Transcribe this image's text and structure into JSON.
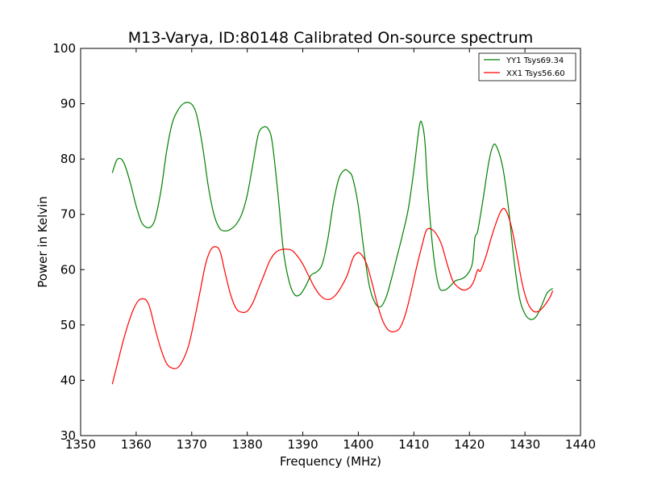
{
  "chart_data": {
    "type": "line",
    "title": "M13-Varya, ID:80148 Calibrated On-source spectrum",
    "xlabel": "Frequency (MHz)",
    "ylabel": "Power in Kelvin",
    "xlim": [
      1350,
      1440
    ],
    "ylim": [
      30,
      100
    ],
    "xticks": [
      1350,
      1360,
      1370,
      1380,
      1390,
      1400,
      1410,
      1420,
      1430,
      1440
    ],
    "yticks": [
      30,
      40,
      50,
      60,
      70,
      80,
      90,
      100
    ],
    "grid": false,
    "legend_position": "top-right",
    "series": [
      {
        "name": "YY1 Tsys69.34",
        "color": "#008000",
        "x": [
          1355.7,
          1356.5,
          1357.3,
          1358.0,
          1359.0,
          1360.0,
          1361.0,
          1362.0,
          1362.8,
          1363.5,
          1364.5,
          1365.5,
          1366.5,
          1367.5,
          1368.5,
          1369.5,
          1370.3,
          1371.0,
          1372.0,
          1373.0,
          1374.0,
          1375.0,
          1376.0,
          1377.0,
          1378.0,
          1379.0,
          1380.0,
          1381.0,
          1382.0,
          1383.0,
          1383.8,
          1384.5,
          1385.5,
          1386.5,
          1387.5,
          1388.5,
          1389.5,
          1390.5,
          1391.5,
          1392.5,
          1393.5,
          1394.5,
          1395.5,
          1396.5,
          1397.5,
          1398.3,
          1399.0,
          1400.0,
          1401.0,
          1402.0,
          1403.0,
          1404.0,
          1405.0,
          1406.0,
          1407.0,
          1408.0,
          1409.0,
          1410.0,
          1411.0,
          1411.5,
          1412.0,
          1412.5,
          1413.5,
          1414.5,
          1415.5,
          1416.5,
          1417.5,
          1418.5,
          1419.5,
          1420.5,
          1421.0,
          1421.5,
          1422.5,
          1423.5,
          1424.3,
          1425.0,
          1426.0,
          1427.0,
          1428.0,
          1429.0,
          1430.0,
          1431.0,
          1432.0,
          1433.0,
          1434.0,
          1435.0
        ],
        "y": [
          77.5,
          79.8,
          80.0,
          78.8,
          75.5,
          71.5,
          68.5,
          67.6,
          67.9,
          69.5,
          74.5,
          81.5,
          86.5,
          88.8,
          90.0,
          90.2,
          89.5,
          87.5,
          82.0,
          75.0,
          70.0,
          67.5,
          67.0,
          67.3,
          68.2,
          70.0,
          73.5,
          79.0,
          84.5,
          85.8,
          85.4,
          83.0,
          74.0,
          63.5,
          58.0,
          55.5,
          55.5,
          57.0,
          59.0,
          59.6,
          61.0,
          65.5,
          72.0,
          76.5,
          78.0,
          77.7,
          76.5,
          71.5,
          63.5,
          57.0,
          54.0,
          53.3,
          55.0,
          58.5,
          62.5,
          66.5,
          71.0,
          78.0,
          86.0,
          86.3,
          83.0,
          74.5,
          63.0,
          57.0,
          56.3,
          57.0,
          58.0,
          58.3,
          59.0,
          61.0,
          65.8,
          67.0,
          73.0,
          79.5,
          82.5,
          82.0,
          78.5,
          71.5,
          62.0,
          55.0,
          52.0,
          51.0,
          51.5,
          53.5,
          55.8,
          56.6
        ]
      },
      {
        "name": "XX1 Tsys56.60",
        "color": "#ff0000",
        "x": [
          1355.7,
          1356.5,
          1357.5,
          1358.5,
          1359.5,
          1360.5,
          1361.5,
          1362.0,
          1362.5,
          1363.5,
          1364.5,
          1365.5,
          1366.5,
          1367.5,
          1368.5,
          1369.5,
          1370.5,
          1371.5,
          1372.5,
          1373.5,
          1374.5,
          1375.2,
          1376.0,
          1377.0,
          1378.0,
          1379.0,
          1380.0,
          1381.0,
          1382.0,
          1383.0,
          1384.0,
          1385.0,
          1386.0,
          1387.0,
          1388.0,
          1389.0,
          1390.0,
          1391.0,
          1392.0,
          1393.0,
          1394.0,
          1395.0,
          1396.0,
          1397.0,
          1398.0,
          1399.0,
          1399.8,
          1400.5,
          1401.5,
          1402.5,
          1403.5,
          1404.5,
          1405.5,
          1406.5,
          1407.5,
          1408.5,
          1409.5,
          1410.5,
          1411.5,
          1412.2,
          1413.0,
          1414.0,
          1415.0,
          1416.0,
          1417.0,
          1418.0,
          1419.0,
          1420.0,
          1420.6,
          1421.0,
          1421.5,
          1422.0,
          1423.0,
          1424.0,
          1425.0,
          1425.8,
          1426.5,
          1427.5,
          1428.5,
          1429.5,
          1430.5,
          1431.5,
          1432.5,
          1433.5,
          1434.5,
          1435.0
        ],
        "y": [
          39.3,
          42.5,
          46.5,
          50.0,
          52.8,
          54.5,
          54.7,
          54.2,
          53.0,
          49.0,
          45.5,
          43.0,
          42.2,
          42.3,
          43.8,
          46.5,
          51.0,
          56.0,
          61.0,
          63.7,
          64.1,
          63.0,
          59.5,
          55.5,
          53.0,
          52.3,
          52.5,
          54.0,
          56.5,
          59.0,
          61.5,
          63.0,
          63.6,
          63.7,
          63.5,
          62.5,
          61.0,
          59.0,
          57.0,
          55.5,
          54.7,
          54.7,
          55.5,
          57.0,
          59.0,
          62.0,
          63.0,
          62.8,
          61.0,
          57.5,
          53.5,
          50.5,
          49.0,
          48.8,
          49.5,
          52.0,
          56.0,
          60.5,
          64.5,
          67.0,
          67.4,
          66.5,
          64.5,
          61.0,
          58.0,
          56.8,
          56.3,
          56.7,
          57.5,
          58.5,
          60.0,
          59.8,
          62.5,
          66.0,
          69.0,
          70.8,
          70.8,
          68.0,
          63.0,
          57.5,
          54.0,
          52.5,
          52.5,
          53.5,
          55.0,
          56.2
        ]
      }
    ]
  }
}
